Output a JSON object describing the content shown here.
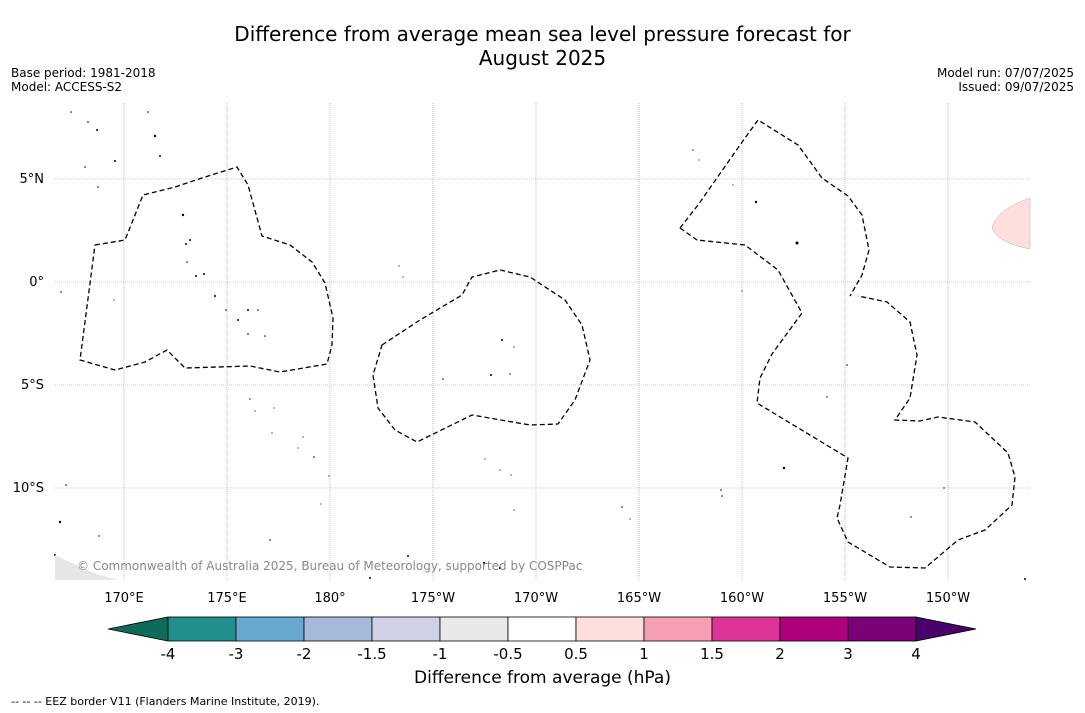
{
  "title_line1": "Difference from average mean sea level pressure forecast for",
  "title_line2": "August 2025",
  "meta_left": [
    "Base period: 1981-2018",
    "Model: ACCESS-S2"
  ],
  "meta_right": [
    "Model run: 07/07/2025",
    "Issued: 09/07/2025"
  ],
  "map": {
    "lat_labels": [
      "5°N",
      "0°",
      "5°S",
      "10°S"
    ],
    "lon_labels": [
      "170°E",
      "175°E",
      "180°",
      "175°W",
      "170°W",
      "165°W",
      "160°W",
      "155°W",
      "150°W"
    ],
    "copyright": "© Commonwealth of Australia 2025, Bureau of Meteorology, supported by COSPPac",
    "highlight_color": "#fde0de"
  },
  "colorbar": {
    "ticks": [
      "-4",
      "-3",
      "-2",
      "-1.5",
      "-1",
      "-0.5",
      "0.5",
      "1",
      "1.5",
      "2",
      "3",
      "4"
    ],
    "colors": [
      "#0e6b5c",
      "#21908c",
      "#67a9cf",
      "#a6b9da",
      "#d0d1e6",
      "#e8e8e8",
      "#ffffff",
      "#fde0de",
      "#f7a0b5",
      "#dd3497",
      "#ae017e",
      "#7a0177",
      "#49006a"
    ],
    "label": "Difference from average (hPa)"
  },
  "footnote": "--  --  -- EEZ border V11 (Flanders Marine Institute, 2019)."
}
